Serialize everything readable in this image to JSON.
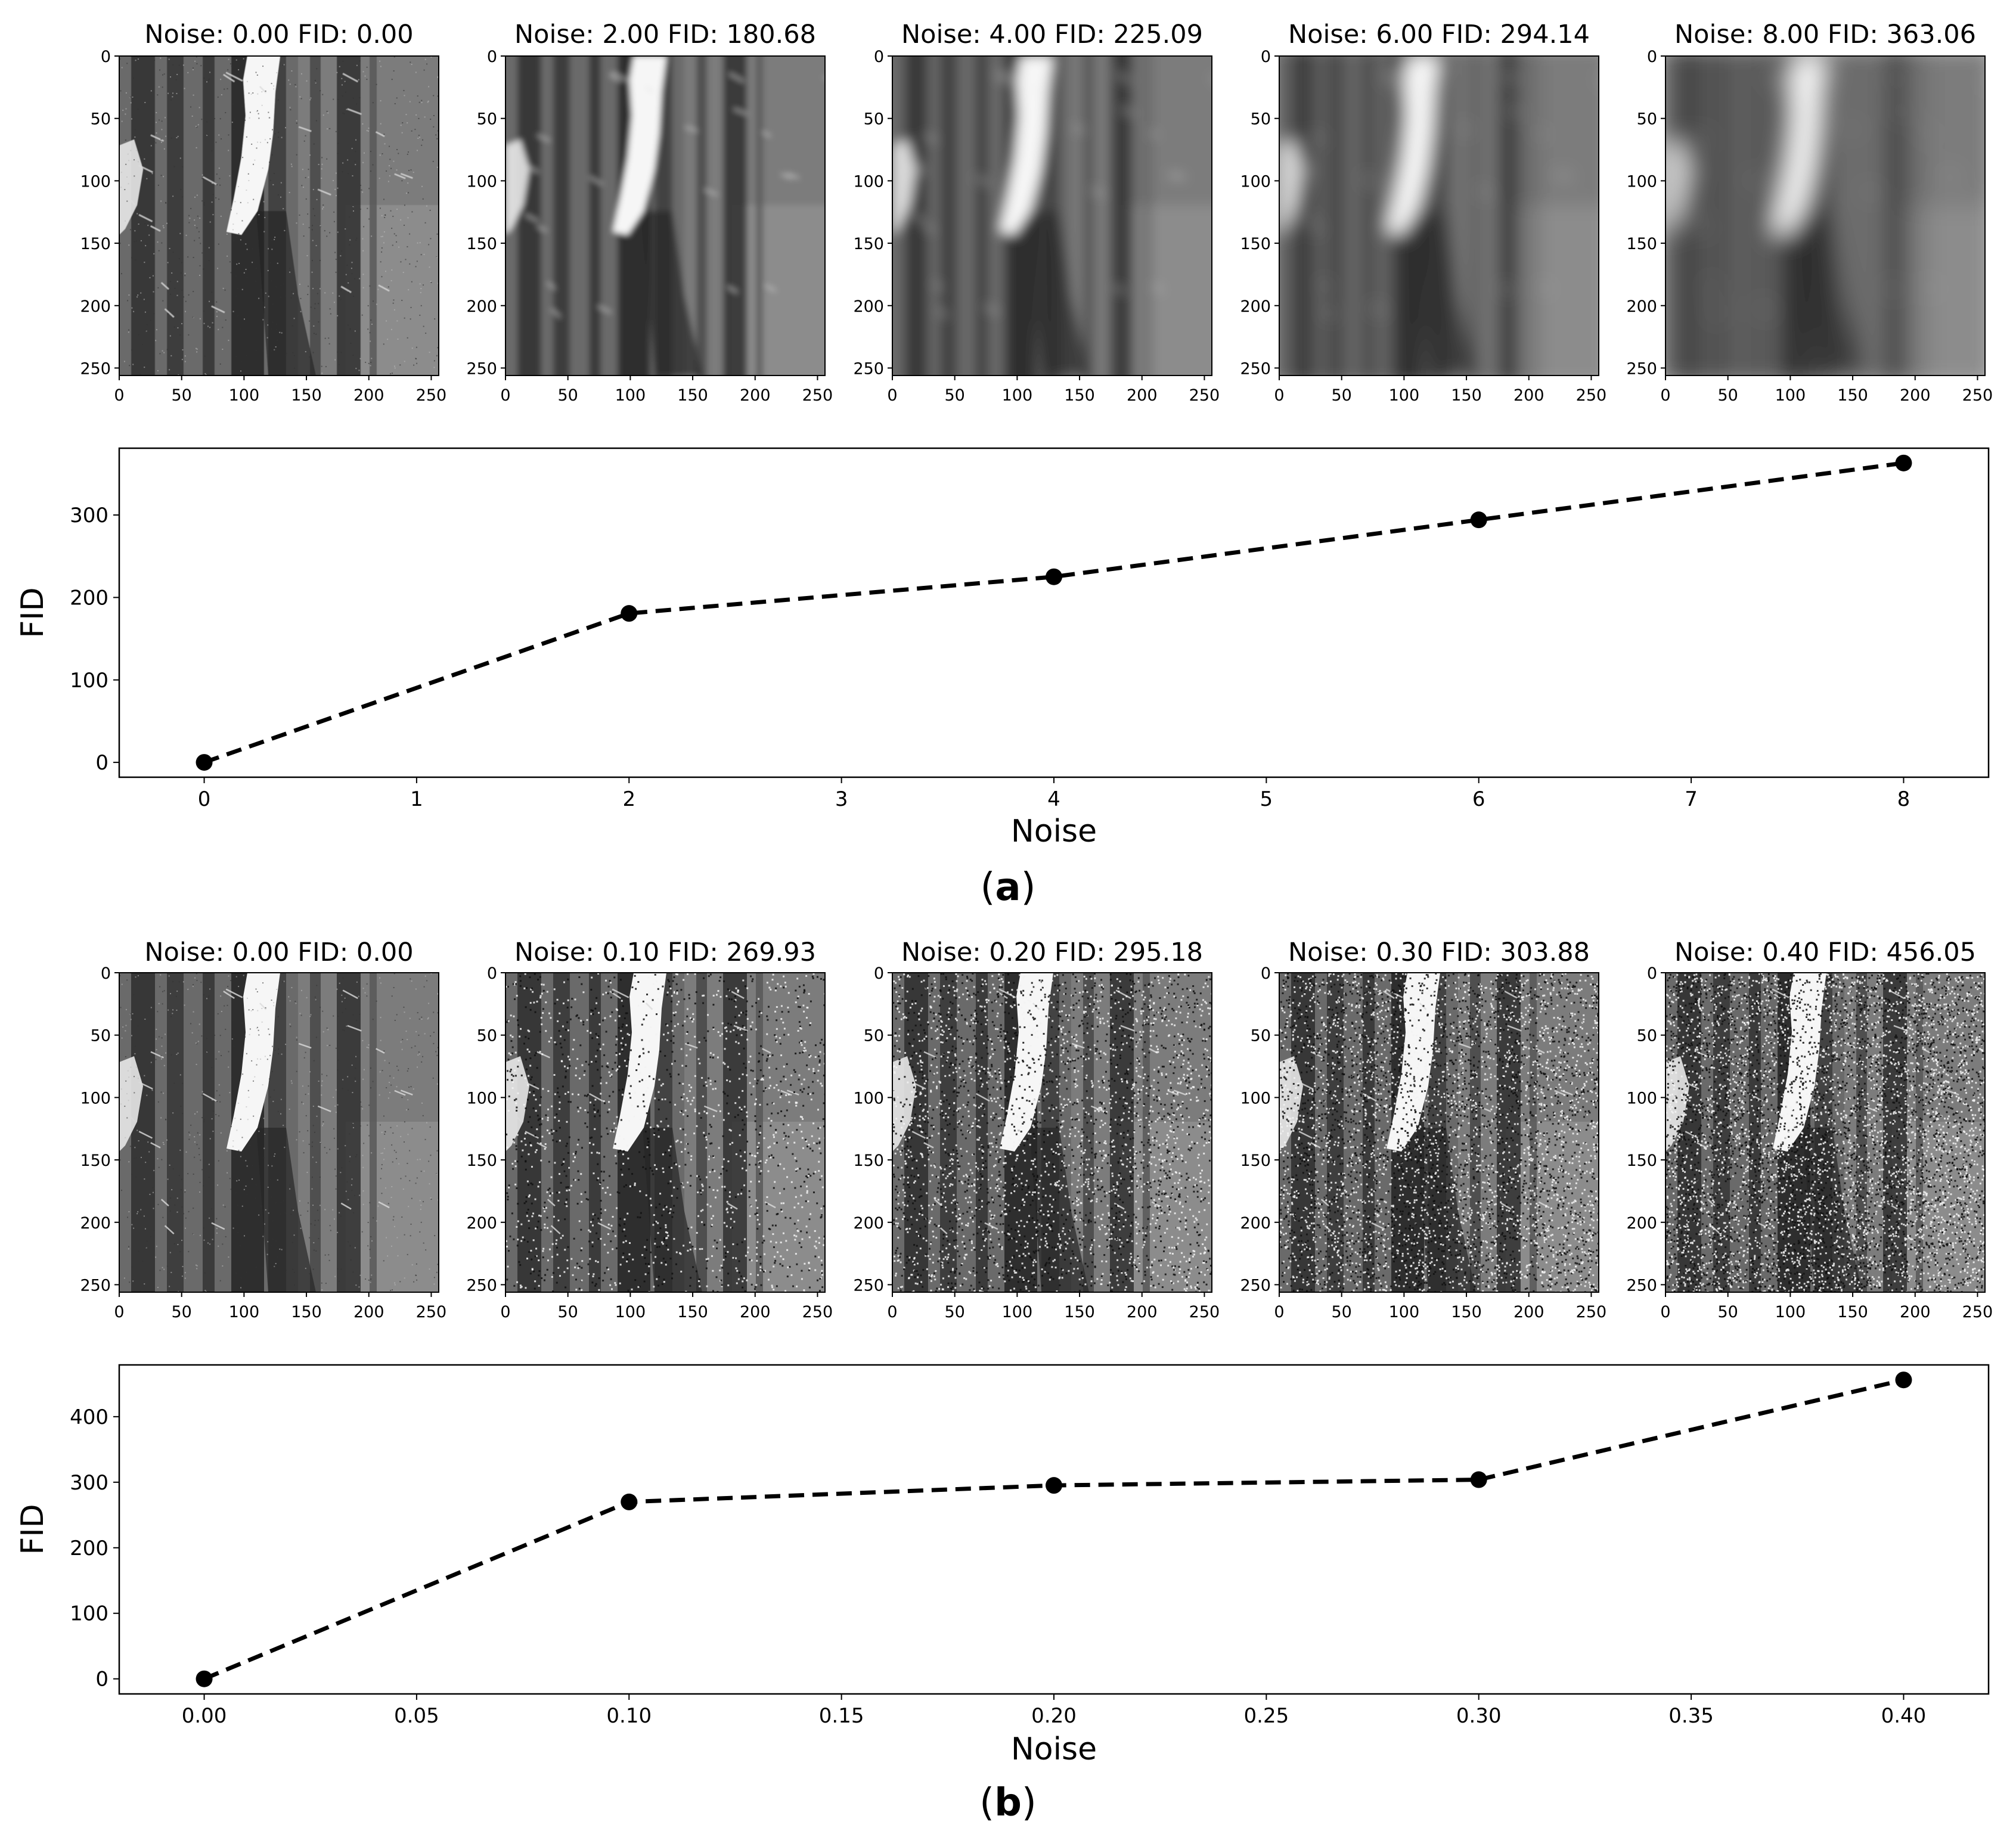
{
  "panels": [
    {
      "caption_label": "a",
      "images": [
        {
          "noise": "0.00",
          "fid": "0.00",
          "title": "Noise: 0.00 FID: 0.00"
        },
        {
          "noise": "2.00",
          "fid": "180.68",
          "title": "Noise: 2.00 FID: 180.68"
        },
        {
          "noise": "4.00",
          "fid": "225.09",
          "title": "Noise: 4.00 FID: 225.09"
        },
        {
          "noise": "6.00",
          "fid": "294.14",
          "title": "Noise: 6.00 FID: 294.14"
        },
        {
          "noise": "8.00",
          "fid": "363.06",
          "title": "Noise: 8.00 FID: 363.06"
        }
      ],
      "image_ticks": [
        0,
        50,
        100,
        150,
        200,
        250
      ],
      "image_axis_range": [
        0,
        256
      ],
      "chart_data": {
        "type": "line",
        "x": [
          0,
          2,
          4,
          6,
          8
        ],
        "y": [
          0.0,
          180.68,
          225.09,
          294.14,
          363.06
        ],
        "xlabel": "Noise",
        "ylabel": "FID",
        "xlim": [
          -0.4,
          8.4
        ],
        "ylim": [
          -18,
          381
        ],
        "xticks": [
          0,
          1,
          2,
          3,
          4,
          5,
          6,
          7,
          8
        ],
        "xtick_labels": [
          "0",
          "1",
          "2",
          "3",
          "4",
          "5",
          "6",
          "7",
          "8"
        ],
        "yticks": [
          0,
          100,
          200,
          300
        ],
        "ytick_labels": [
          "0",
          "100",
          "200",
          "300"
        ],
        "line_style": "dashed",
        "marker": "circle",
        "color": "#000000",
        "grid": false
      }
    },
    {
      "caption_label": "b",
      "images": [
        {
          "noise": "0.00",
          "fid": "0.00",
          "title": "Noise: 0.00 FID: 0.00"
        },
        {
          "noise": "0.10",
          "fid": "269.93",
          "title": "Noise: 0.10 FID: 269.93"
        },
        {
          "noise": "0.20",
          "fid": "295.18",
          "title": "Noise: 0.20 FID: 295.18"
        },
        {
          "noise": "0.30",
          "fid": "303.88",
          "title": "Noise: 0.30 FID: 303.88"
        },
        {
          "noise": "0.40",
          "fid": "456.05",
          "title": "Noise: 0.40 FID: 456.05"
        }
      ],
      "image_ticks": [
        0,
        50,
        100,
        150,
        200,
        250
      ],
      "image_axis_range": [
        0,
        256
      ],
      "chart_data": {
        "type": "line",
        "x": [
          0.0,
          0.1,
          0.2,
          0.3,
          0.4
        ],
        "y": [
          0.0,
          269.93,
          295.18,
          303.88,
          456.05
        ],
        "xlabel": "Noise",
        "ylabel": "FID",
        "xlim": [
          -0.02,
          0.42
        ],
        "ylim": [
          -23,
          479
        ],
        "xticks": [
          0.0,
          0.05,
          0.1,
          0.15,
          0.2,
          0.25,
          0.3,
          0.35,
          0.4
        ],
        "xtick_labels": [
          "0.00",
          "0.05",
          "0.10",
          "0.15",
          "0.20",
          "0.25",
          "0.30",
          "0.35",
          "0.40"
        ],
        "yticks": [
          0,
          100,
          200,
          300,
          400
        ],
        "ytick_labels": [
          "0",
          "100",
          "200",
          "300",
          "400"
        ],
        "line_style": "dashed",
        "marker": "circle",
        "color": "#000000",
        "grid": false
      }
    }
  ]
}
